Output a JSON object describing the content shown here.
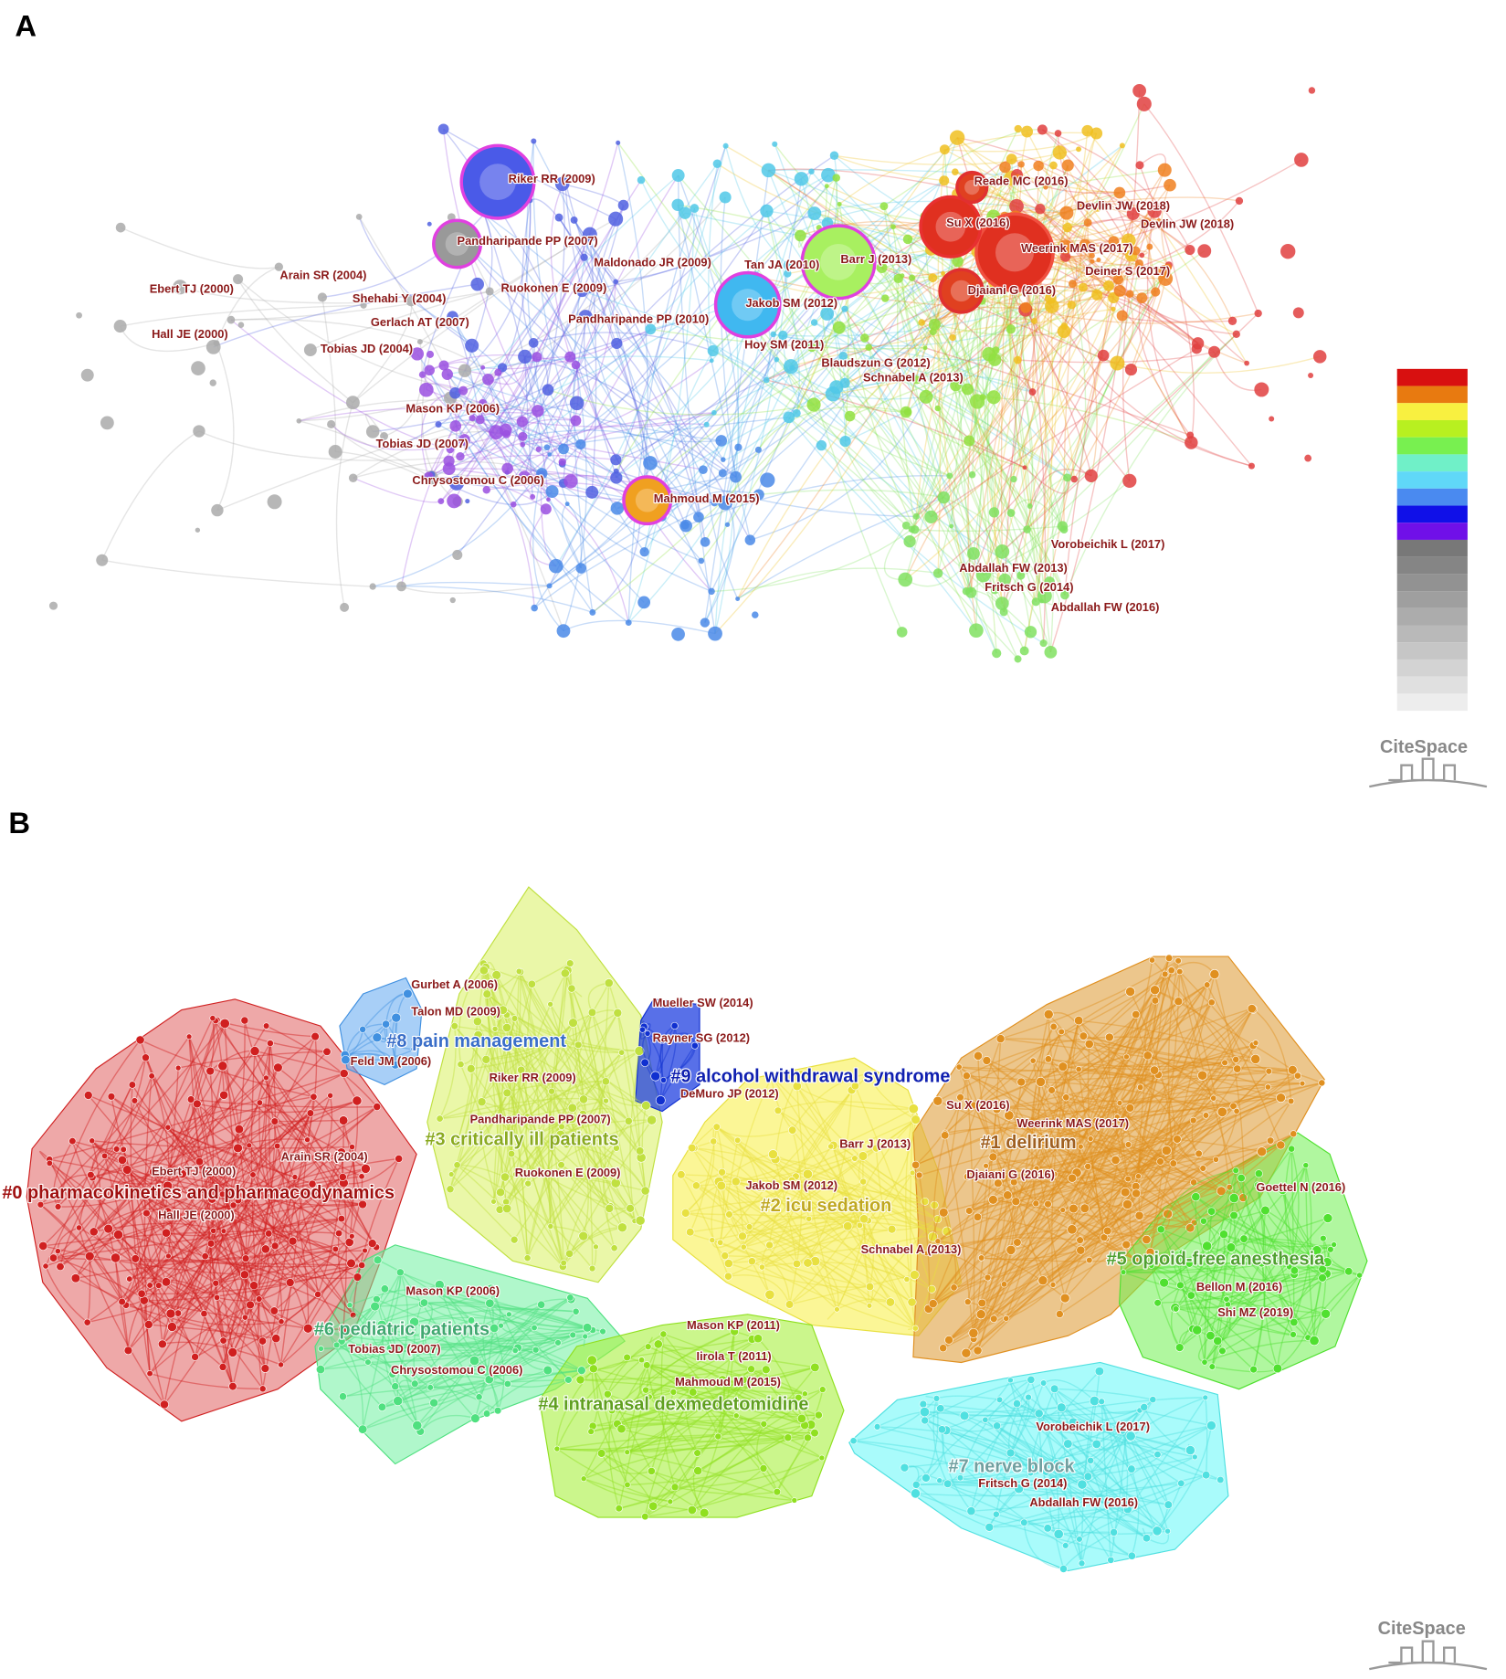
{
  "panel_a": {
    "label": "A",
    "logo": "CiteSpace",
    "nodes": [
      {
        "label": "Riker RR (2009)"
      },
      {
        "label": "Pandharipande PP (2007)"
      },
      {
        "label": "Maldonado JR (2009)"
      },
      {
        "label": "Ebert TJ (2000)"
      },
      {
        "label": "Arain SR (2004)"
      },
      {
        "label": "Shehabi Y (2004)"
      },
      {
        "label": "Gerlach AT (2007)"
      },
      {
        "label": "Hall JE (2000)"
      },
      {
        "label": "Tobias JD (2004)"
      },
      {
        "label": "Ruokonen E (2009)"
      },
      {
        "label": "Pandharipande PP (2010)"
      },
      {
        "label": "Tan JA (2010)"
      },
      {
        "label": "Barr J (2013)"
      },
      {
        "label": "Jakob SM (2012)"
      },
      {
        "label": "Hoy SM (2011)"
      },
      {
        "label": "Blaudszun G (2012)"
      },
      {
        "label": "Schnabel A (2013)"
      },
      {
        "label": "Mason KP (2006)"
      },
      {
        "label": "Tobias JD (2007)"
      },
      {
        "label": "Chrysostomou C (2006)"
      },
      {
        "label": "Mahmoud M (2015)"
      },
      {
        "label": "Reade MC (2016)"
      },
      {
        "label": "Su X (2016)"
      },
      {
        "label": "Devlin JW (2018)"
      },
      {
        "label": "Devlin JW (2018)"
      },
      {
        "label": "Weerink MAS (2017)"
      },
      {
        "label": "Deiner S (2017)"
      },
      {
        "label": "Djaiani G (2016)"
      },
      {
        "label": "Vorobeichik L (2017)"
      },
      {
        "label": "Abdallah FW (2013)"
      },
      {
        "label": "Fritsch G (2014)"
      },
      {
        "label": "Abdallah FW (2016)"
      }
    ]
  },
  "panel_b": {
    "label": "B",
    "logo": "CiteSpace",
    "clusters": [
      {
        "label": "#0 pharmacokinetics and pharmacodynamics"
      },
      {
        "label": "#8 pain management"
      },
      {
        "label": "#9 alcohol withdrawal syndrome"
      },
      {
        "label": "#3 critically ill patients"
      },
      {
        "label": "#1 delirium"
      },
      {
        "label": "#2 icu sedation"
      },
      {
        "label": "#5 opioid-free anesthesia"
      },
      {
        "label": "#6 pediatric patients"
      },
      {
        "label": "#4 intranasal dexmedetomidine"
      },
      {
        "label": "#7 nerve block"
      }
    ],
    "nodes": [
      {
        "label": "Gurbet A (2006)"
      },
      {
        "label": "Talon MD (2009)"
      },
      {
        "label": "Feld JM (2006)"
      },
      {
        "label": "Mueller SW (2014)"
      },
      {
        "label": "Rayner SG (2012)"
      },
      {
        "label": "DeMuro JP (2012)"
      },
      {
        "label": "Riker RR (2009)"
      },
      {
        "label": "Pandharipande PP (2007)"
      },
      {
        "label": "Ebert TJ (2000)"
      },
      {
        "label": "Arain SR (2004)"
      },
      {
        "label": "Hall JE (2000)"
      },
      {
        "label": "Ruokonen E (2009)"
      },
      {
        "label": "Barr J (2013)"
      },
      {
        "label": "Jakob SM (2012)"
      },
      {
        "label": "Su X (2016)"
      },
      {
        "label": "Weerink MAS (2017)"
      },
      {
        "label": "Djaiani G (2016)"
      },
      {
        "label": "Schnabel A (2013)"
      },
      {
        "label": "Goettel N (2016)"
      },
      {
        "label": "Bellon M (2016)"
      },
      {
        "label": "Shi MZ (2019)"
      },
      {
        "label": "Mason KP (2006)"
      },
      {
        "label": "Tobias JD (2007)"
      },
      {
        "label": "Chrysostomou C (2006)"
      },
      {
        "label": "Mason KP (2011)"
      },
      {
        "label": "Iirola T (2011)"
      },
      {
        "label": "Mahmoud M (2015)"
      },
      {
        "label": "Vorobeichik L (2017)"
      },
      {
        "label": "Fritsch G (2014)"
      },
      {
        "label": "Abdallah FW (2016)"
      }
    ]
  }
}
